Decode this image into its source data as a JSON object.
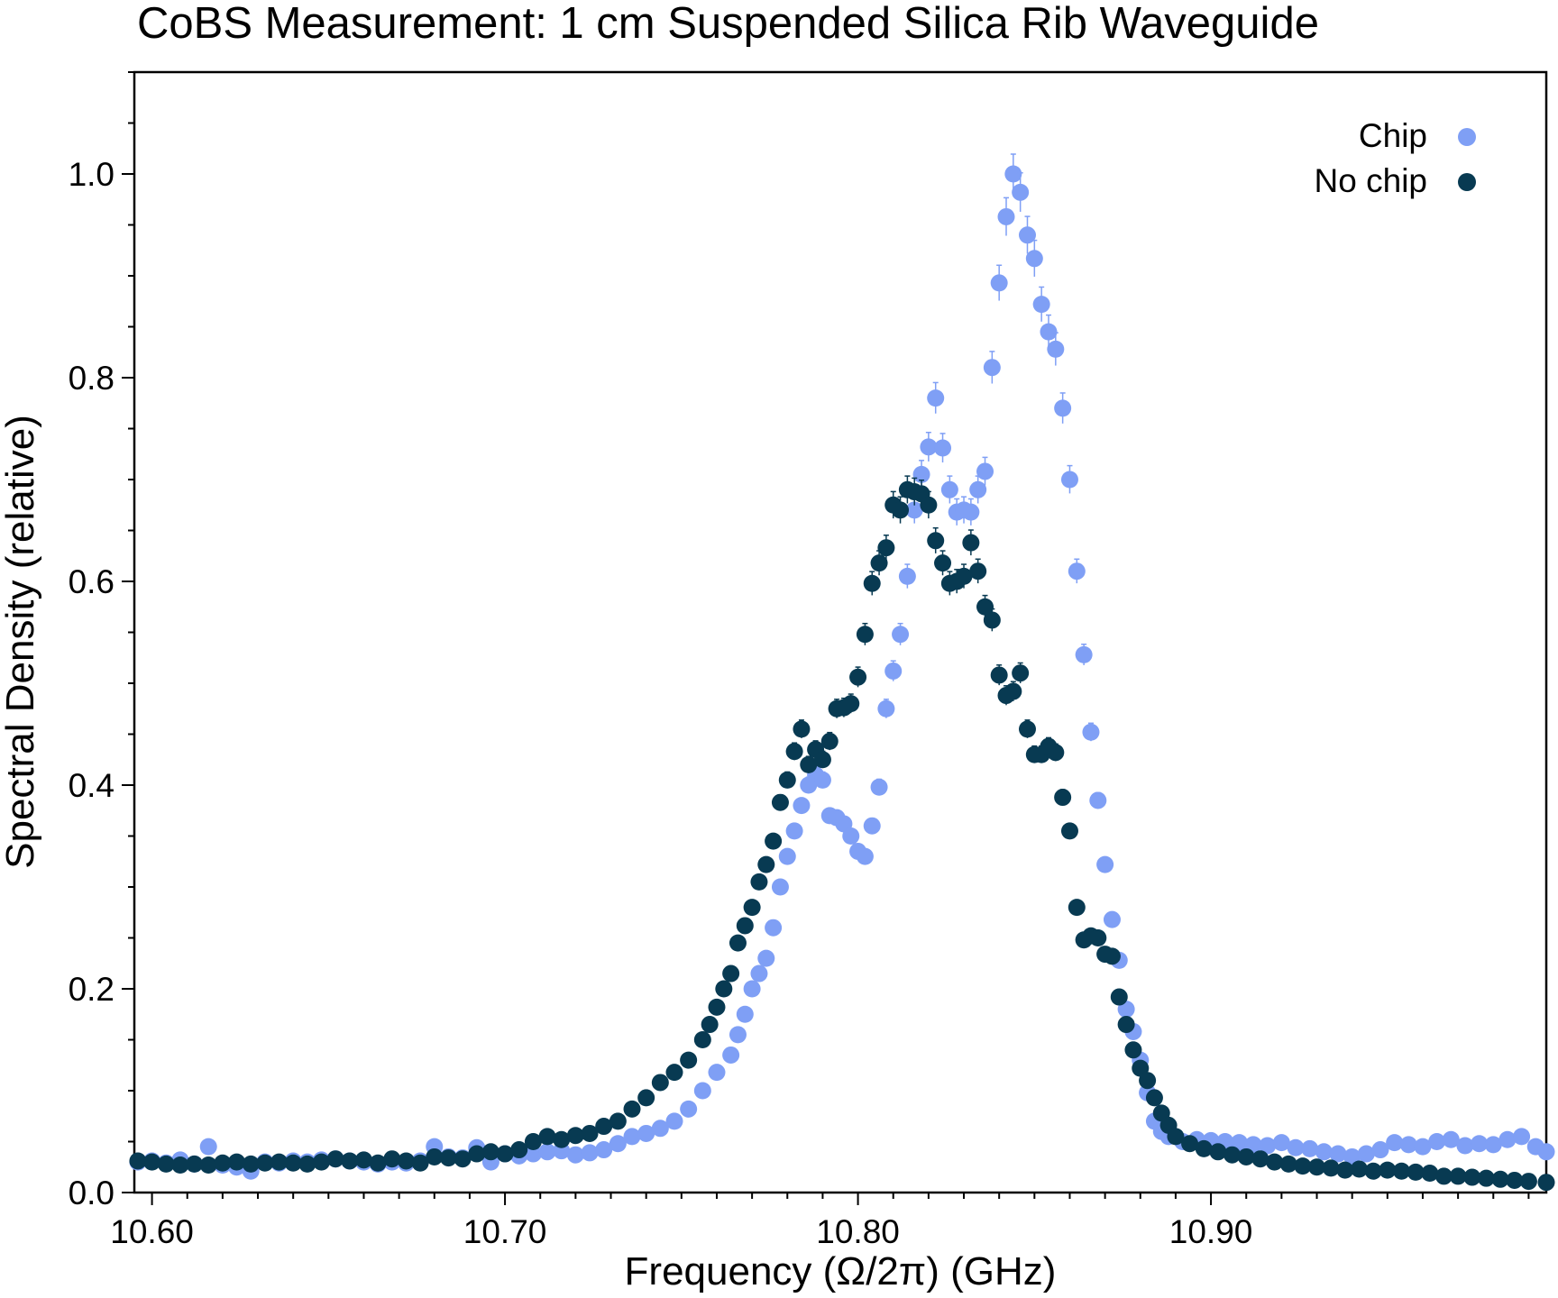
{
  "chart_data": {
    "type": "scatter",
    "title": "CoBS Measurement: 1 cm Suspended Silica Rib Waveguide",
    "xlabel": "Frequency (Ω/2π) (GHz)",
    "ylabel": "Spectral Density (relative)",
    "xlim": [
      10.595,
      10.995
    ],
    "ylim": [
      0.0,
      1.1
    ],
    "x_ticks": [
      10.6,
      10.7,
      10.8,
      10.9
    ],
    "x_tick_labels": [
      "10.60",
      "10.70",
      "10.80",
      "10.90"
    ],
    "y_ticks": [
      0.0,
      0.2,
      0.4,
      0.6,
      0.8,
      1.0
    ],
    "y_tick_labels": [
      "0.0",
      "0.2",
      "0.4",
      "0.6",
      "0.8",
      "1.0"
    ],
    "grid": false,
    "error_bars": true,
    "legend_position": "top-right",
    "series": [
      {
        "name": "Chip",
        "color": "#7f9ff5",
        "points": [
          [
            10.596,
            0.03
          ],
          [
            10.6,
            0.031
          ],
          [
            10.604,
            0.029
          ],
          [
            10.608,
            0.032
          ],
          [
            10.612,
            0.028
          ],
          [
            10.616,
            0.045
          ],
          [
            10.62,
            0.027
          ],
          [
            10.624,
            0.025
          ],
          [
            10.628,
            0.021
          ],
          [
            10.632,
            0.03
          ],
          [
            10.636,
            0.029
          ],
          [
            10.64,
            0.031
          ],
          [
            10.644,
            0.03
          ],
          [
            10.648,
            0.032
          ],
          [
            10.652,
            0.033
          ],
          [
            10.656,
            0.031
          ],
          [
            10.66,
            0.03
          ],
          [
            10.664,
            0.028
          ],
          [
            10.668,
            0.03
          ],
          [
            10.672,
            0.029
          ],
          [
            10.676,
            0.031
          ],
          [
            10.68,
            0.045
          ],
          [
            10.684,
            0.035
          ],
          [
            10.688,
            0.034
          ],
          [
            10.692,
            0.044
          ],
          [
            10.696,
            0.03
          ],
          [
            10.7,
            0.038
          ],
          [
            10.704,
            0.036
          ],
          [
            10.708,
            0.038
          ],
          [
            10.712,
            0.04
          ],
          [
            10.716,
            0.041
          ],
          [
            10.72,
            0.037
          ],
          [
            10.724,
            0.039
          ],
          [
            10.728,
            0.042
          ],
          [
            10.732,
            0.048
          ],
          [
            10.736,
            0.055
          ],
          [
            10.74,
            0.058
          ],
          [
            10.744,
            0.063
          ],
          [
            10.748,
            0.07
          ],
          [
            10.752,
            0.082
          ],
          [
            10.756,
            0.1
          ],
          [
            10.76,
            0.118
          ],
          [
            10.764,
            0.135
          ],
          [
            10.766,
            0.155
          ],
          [
            10.768,
            0.175
          ],
          [
            10.77,
            0.2
          ],
          [
            10.772,
            0.215
          ],
          [
            10.774,
            0.23
          ],
          [
            10.776,
            0.26
          ],
          [
            10.778,
            0.3
          ],
          [
            10.78,
            0.33
          ],
          [
            10.782,
            0.355
          ],
          [
            10.784,
            0.38
          ],
          [
            10.786,
            0.4
          ],
          [
            10.788,
            0.41
          ],
          [
            10.79,
            0.405
          ],
          [
            10.792,
            0.37
          ],
          [
            10.794,
            0.368
          ],
          [
            10.796,
            0.362
          ],
          [
            10.798,
            0.35
          ],
          [
            10.8,
            0.335
          ],
          [
            10.802,
            0.33
          ],
          [
            10.804,
            0.36
          ],
          [
            10.806,
            0.398
          ],
          [
            10.808,
            0.475
          ],
          [
            10.81,
            0.512
          ],
          [
            10.812,
            0.548
          ],
          [
            10.814,
            0.605
          ],
          [
            10.816,
            0.67
          ],
          [
            10.818,
            0.705
          ],
          [
            10.82,
            0.732
          ],
          [
            10.822,
            0.78
          ],
          [
            10.824,
            0.731
          ],
          [
            10.826,
            0.69
          ],
          [
            10.828,
            0.668
          ],
          [
            10.83,
            0.67
          ],
          [
            10.832,
            0.668
          ],
          [
            10.834,
            0.69
          ],
          [
            10.836,
            0.708
          ],
          [
            10.838,
            0.81
          ],
          [
            10.84,
            0.893
          ],
          [
            10.842,
            0.958
          ],
          [
            10.844,
            1.0
          ],
          [
            10.846,
            0.982
          ],
          [
            10.848,
            0.94
          ],
          [
            10.85,
            0.917
          ],
          [
            10.852,
            0.872
          ],
          [
            10.854,
            0.845
          ],
          [
            10.856,
            0.828
          ],
          [
            10.858,
            0.77
          ],
          [
            10.86,
            0.7
          ],
          [
            10.862,
            0.61
          ],
          [
            10.864,
            0.528
          ],
          [
            10.866,
            0.452
          ],
          [
            10.868,
            0.385
          ],
          [
            10.87,
            0.322
          ],
          [
            10.872,
            0.268
          ],
          [
            10.874,
            0.228
          ],
          [
            10.876,
            0.18
          ],
          [
            10.878,
            0.158
          ],
          [
            10.88,
            0.13
          ],
          [
            10.882,
            0.098
          ],
          [
            10.884,
            0.07
          ],
          [
            10.886,
            0.06
          ],
          [
            10.888,
            0.055
          ],
          [
            10.892,
            0.05
          ],
          [
            10.896,
            0.052
          ],
          [
            10.9,
            0.051
          ],
          [
            10.904,
            0.05
          ],
          [
            10.908,
            0.049
          ],
          [
            10.912,
            0.047
          ],
          [
            10.916,
            0.046
          ],
          [
            10.92,
            0.049
          ],
          [
            10.924,
            0.044
          ],
          [
            10.928,
            0.043
          ],
          [
            10.932,
            0.04
          ],
          [
            10.936,
            0.038
          ],
          [
            10.94,
            0.035
          ],
          [
            10.944,
            0.038
          ],
          [
            10.948,
            0.042
          ],
          [
            10.952,
            0.049
          ],
          [
            10.956,
            0.047
          ],
          [
            10.96,
            0.045
          ],
          [
            10.964,
            0.05
          ],
          [
            10.968,
            0.052
          ],
          [
            10.972,
            0.046
          ],
          [
            10.976,
            0.048
          ],
          [
            10.98,
            0.047
          ],
          [
            10.984,
            0.052
          ],
          [
            10.988,
            0.055
          ],
          [
            10.992,
            0.045
          ],
          [
            10.995,
            0.04
          ]
        ]
      },
      {
        "name": "No chip",
        "color": "#083a52",
        "points": [
          [
            10.596,
            0.031
          ],
          [
            10.6,
            0.03
          ],
          [
            10.604,
            0.028
          ],
          [
            10.608,
            0.027
          ],
          [
            10.612,
            0.028
          ],
          [
            10.616,
            0.027
          ],
          [
            10.62,
            0.029
          ],
          [
            10.624,
            0.03
          ],
          [
            10.628,
            0.028
          ],
          [
            10.632,
            0.029
          ],
          [
            10.636,
            0.03
          ],
          [
            10.64,
            0.029
          ],
          [
            10.644,
            0.028
          ],
          [
            10.648,
            0.03
          ],
          [
            10.652,
            0.033
          ],
          [
            10.656,
            0.031
          ],
          [
            10.66,
            0.032
          ],
          [
            10.664,
            0.029
          ],
          [
            10.668,
            0.033
          ],
          [
            10.672,
            0.031
          ],
          [
            10.676,
            0.029
          ],
          [
            10.68,
            0.035
          ],
          [
            10.684,
            0.034
          ],
          [
            10.688,
            0.033
          ],
          [
            10.692,
            0.038
          ],
          [
            10.696,
            0.04
          ],
          [
            10.7,
            0.038
          ],
          [
            10.704,
            0.042
          ],
          [
            10.708,
            0.05
          ],
          [
            10.712,
            0.055
          ],
          [
            10.716,
            0.052
          ],
          [
            10.72,
            0.056
          ],
          [
            10.724,
            0.058
          ],
          [
            10.728,
            0.065
          ],
          [
            10.732,
            0.07
          ],
          [
            10.736,
            0.082
          ],
          [
            10.74,
            0.093
          ],
          [
            10.744,
            0.108
          ],
          [
            10.748,
            0.118
          ],
          [
            10.752,
            0.13
          ],
          [
            10.756,
            0.15
          ],
          [
            10.758,
            0.165
          ],
          [
            10.76,
            0.182
          ],
          [
            10.762,
            0.2
          ],
          [
            10.764,
            0.215
          ],
          [
            10.766,
            0.245
          ],
          [
            10.768,
            0.262
          ],
          [
            10.77,
            0.28
          ],
          [
            10.772,
            0.305
          ],
          [
            10.774,
            0.322
          ],
          [
            10.776,
            0.345
          ],
          [
            10.778,
            0.383
          ],
          [
            10.78,
            0.405
          ],
          [
            10.782,
            0.433
          ],
          [
            10.784,
            0.455
          ],
          [
            10.786,
            0.42
          ],
          [
            10.788,
            0.435
          ],
          [
            10.79,
            0.425
          ],
          [
            10.792,
            0.443
          ],
          [
            10.794,
            0.475
          ],
          [
            10.796,
            0.476
          ],
          [
            10.798,
            0.48
          ],
          [
            10.8,
            0.506
          ],
          [
            10.802,
            0.548
          ],
          [
            10.804,
            0.598
          ],
          [
            10.806,
            0.618
          ],
          [
            10.808,
            0.633
          ],
          [
            10.81,
            0.675
          ],
          [
            10.812,
            0.67
          ],
          [
            10.814,
            0.69
          ],
          [
            10.816,
            0.688
          ],
          [
            10.818,
            0.686
          ],
          [
            10.82,
            0.675
          ],
          [
            10.822,
            0.64
          ],
          [
            10.824,
            0.618
          ],
          [
            10.826,
            0.598
          ],
          [
            10.828,
            0.6
          ],
          [
            10.83,
            0.605
          ],
          [
            10.832,
            0.638
          ],
          [
            10.834,
            0.61
          ],
          [
            10.836,
            0.575
          ],
          [
            10.838,
            0.562
          ],
          [
            10.84,
            0.508
          ],
          [
            10.842,
            0.488
          ],
          [
            10.844,
            0.492
          ],
          [
            10.846,
            0.51
          ],
          [
            10.848,
            0.455
          ],
          [
            10.85,
            0.43
          ],
          [
            10.852,
            0.43
          ],
          [
            10.854,
            0.438
          ],
          [
            10.856,
            0.432
          ],
          [
            10.858,
            0.388
          ],
          [
            10.86,
            0.355
          ],
          [
            10.862,
            0.28
          ],
          [
            10.864,
            0.248
          ],
          [
            10.866,
            0.252
          ],
          [
            10.868,
            0.25
          ],
          [
            10.87,
            0.234
          ],
          [
            10.872,
            0.232
          ],
          [
            10.874,
            0.192
          ],
          [
            10.876,
            0.165
          ],
          [
            10.878,
            0.14
          ],
          [
            10.88,
            0.122
          ],
          [
            10.882,
            0.11
          ],
          [
            10.884,
            0.093
          ],
          [
            10.886,
            0.078
          ],
          [
            10.888,
            0.066
          ],
          [
            10.89,
            0.055
          ],
          [
            10.894,
            0.048
          ],
          [
            10.898,
            0.043
          ],
          [
            10.902,
            0.04
          ],
          [
            10.906,
            0.037
          ],
          [
            10.91,
            0.035
          ],
          [
            10.914,
            0.033
          ],
          [
            10.918,
            0.03
          ],
          [
            10.922,
            0.028
          ],
          [
            10.926,
            0.026
          ],
          [
            10.93,
            0.025
          ],
          [
            10.934,
            0.024
          ],
          [
            10.938,
            0.022
          ],
          [
            10.942,
            0.023
          ],
          [
            10.946,
            0.021
          ],
          [
            10.95,
            0.022
          ],
          [
            10.954,
            0.021
          ],
          [
            10.958,
            0.02
          ],
          [
            10.962,
            0.019
          ],
          [
            10.966,
            0.016
          ],
          [
            10.97,
            0.016
          ],
          [
            10.974,
            0.015
          ],
          [
            10.978,
            0.014
          ],
          [
            10.982,
            0.013
          ],
          [
            10.986,
            0.012
          ],
          [
            10.99,
            0.011
          ],
          [
            10.995,
            0.01
          ]
        ]
      }
    ]
  }
}
